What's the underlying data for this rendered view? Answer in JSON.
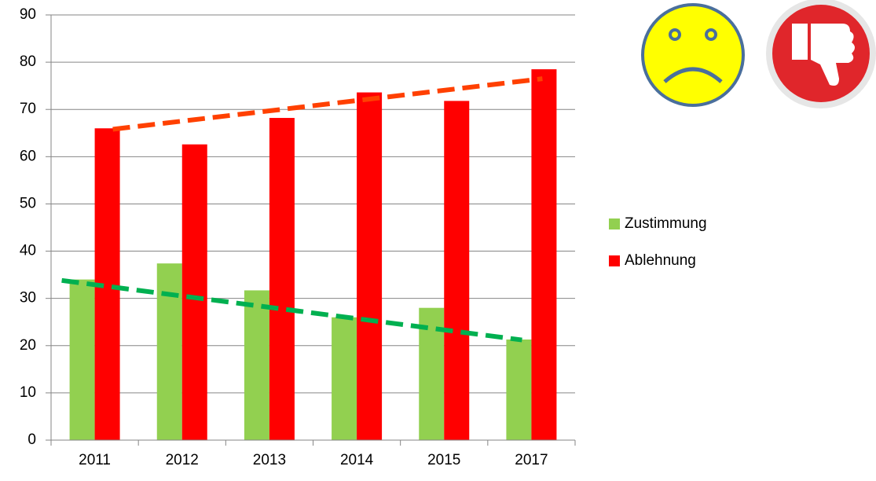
{
  "chart_data": {
    "type": "bar",
    "categories": [
      "2011",
      "2012",
      "2013",
      "2014",
      "2015",
      "2017"
    ],
    "series": [
      {
        "name": "Zustimmung",
        "color": "#92d050",
        "values": [
          34,
          37.4,
          31.7,
          26,
          28,
          21.3
        ],
        "trend": [
          33.8,
          21.2
        ],
        "trend_color": "#00b050"
      },
      {
        "name": "Ablehnung",
        "color": "#ff0000",
        "values": [
          66,
          62.6,
          68.2,
          73.6,
          71.8,
          78.5
        ],
        "trend": [
          65.8,
          76.5
        ],
        "trend_color": "#ff4000"
      }
    ],
    "ylim": [
      0,
      90
    ],
    "yticks": [
      0,
      10,
      20,
      30,
      40,
      50,
      60,
      70,
      80,
      90
    ],
    "grid": true,
    "legend": "right"
  }
}
